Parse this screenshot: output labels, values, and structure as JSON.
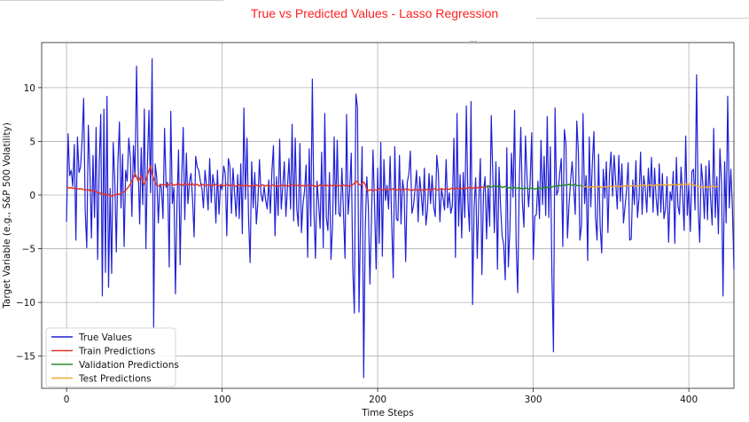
{
  "chart_data": {
    "type": "line",
    "title": "True vs Predicted Values - Lasso Regression",
    "xlabel": "Time Steps",
    "ylabel": "Target Variable (e.g., S&P 500 Volatility)",
    "xlim": [
      -16,
      429
    ],
    "ylim": [
      -18,
      14.2
    ],
    "x_ticks": [
      0,
      100,
      200,
      300,
      400
    ],
    "y_ticks": [
      10,
      5,
      0,
      -5,
      -10,
      -15
    ],
    "grid": true,
    "legend_position": "lower-left",
    "series": [
      {
        "name": "True Values",
        "color": "#1f1fd6",
        "x_start": 0,
        "values": [
          -2.5,
          5.7,
          1.8,
          2.3,
          0.8,
          4.7,
          -4.2,
          5.4,
          2.1,
          2.6,
          5.1,
          9.0,
          -1.5,
          -4.9,
          6.5,
          2.4,
          -4.0,
          3.7,
          -2.1,
          6.3,
          -6.0,
          2.9,
          7.5,
          -9.4,
          8.0,
          -7.2,
          9.2,
          -8.6,
          0.6,
          -7.3,
          4.9,
          1.4,
          -5.3,
          3.0,
          6.8,
          -1.2,
          3.8,
          -4.8,
          2.3,
          1.3,
          5.3,
          3.5,
          -2.0,
          4.6,
          1.7,
          12.0,
          2.9,
          -2.7,
          4.4,
          -0.9,
          8.0,
          -5.0,
          2.9,
          7.9,
          0.2,
          12.7,
          -12.3,
          2.9,
          1.6,
          -2.6,
          1.0,
          0.7,
          -2.2,
          6.2,
          0.7,
          1.2,
          -6.7,
          7.8,
          -0.8,
          0.7,
          -9.2,
          -0.8,
          4.2,
          -6.5,
          1.5,
          6.3,
          -2.3,
          3.9,
          -0.8,
          1.2,
          2.0,
          -0.4,
          -3.9,
          3.6,
          2.6,
          2.3,
          1.3,
          0.6,
          -1.2,
          2.3,
          0.8,
          -1.4,
          3.4,
          -0.7,
          1.9,
          0.9,
          -2.6,
          2.3,
          -1.8,
          1.0,
          0.5,
          2.7,
          2.0,
          -3.8,
          3.4,
          2.7,
          -1.7,
          2.5,
          0.2,
          -2.0,
          1.9,
          -2.2,
          2.9,
          -3.6,
          8.1,
          -0.4,
          5.3,
          -2.2,
          -6.3,
          3.1,
          -1.2,
          2.1,
          -2.7,
          -0.6,
          3.3,
          0.1,
          -0.6,
          0.8,
          -0.5,
          -1.3,
          1.4,
          -1.7,
          2.2,
          4.6,
          -3.8,
          1.7,
          -1.9,
          5.2,
          -1.3,
          0.8,
          3.1,
          -2.0,
          0.7,
          3.4,
          -1.3,
          6.6,
          -2.4,
          5.3,
          -1.3,
          -2.9,
          4.8,
          -3.5,
          -0.8,
          0.4,
          2.8,
          -5.8,
          4.3,
          -2.9,
          10.8,
          -1.3,
          -5.9,
          1.3,
          -0.7,
          -3.1,
          4.0,
          -4.9,
          7.6,
          -2.1,
          -3.3,
          2.1,
          -6.0,
          -2.8,
          5.4,
          -1.8,
          5.1,
          -1.7,
          -2.0,
          2.5,
          -1.6,
          -5.9,
          7.5,
          -1.8,
          0.5,
          3.9,
          -6.9,
          -11.0,
          9.4,
          8.2,
          -10.9,
          -2.0,
          4.5,
          -17.0,
          -3.2,
          1.7,
          -1.1,
          -8.3,
          -2.3,
          4.2,
          -1.0,
          -6.9,
          2.5,
          -4.5,
          4.9,
          -5.7,
          3.3,
          -0.5,
          0.9,
          -1.3,
          3.6,
          -2.5,
          -7.7,
          4.5,
          -2.2,
          -2.4,
          3.7,
          -2.7,
          1.4,
          0.2,
          -6.2,
          1.2,
          1.9,
          4.1,
          -1.7,
          -1.0,
          0.5,
          2.3,
          -2.5,
          1.7,
          0.1,
          -1.9,
          2.5,
          -2.8,
          -1.4,
          2.0,
          -0.8,
          1.8,
          -1.1,
          -2.0,
          3.7,
          2.1,
          -2.5,
          0.6,
          -0.3,
          -1.4,
          3.3,
          -1.2,
          0.2,
          -1.7,
          -1.0,
          5.3,
          -5.8,
          7.6,
          -2.9,
          1.9,
          -4.0,
          2.1,
          -2.1,
          8.3,
          -0.5,
          -3.4,
          8.7,
          -10.2,
          -1.0,
          1.6,
          -5.9,
          -0.5,
          3.4,
          -7.4,
          0.2,
          1.7,
          -4.1,
          0.9,
          -2.9,
          7.4,
          1.9,
          -3.5,
          3.1,
          -6.9,
          2.6,
          -1.0,
          -3.8,
          -4.6,
          -7.9,
          4.4,
          -6.7,
          -3.2,
          3.9,
          -0.2,
          7.9,
          -4.5,
          -9.1,
          1.1,
          6.3,
          -0.6,
          -3.0,
          5.5,
          1.6,
          -1.1,
          1.2,
          5.8,
          -6.0,
          -2.0,
          -1.8,
          1.3,
          -2.2,
          5.1,
          -0.9,
          3.6,
          -1.9,
          7.3,
          -2.1,
          4.5,
          -7.3,
          -14.6,
          8.1,
          0.0,
          0.4,
          2.0,
          3.4,
          -4.8,
          6.1,
          4.8,
          -4.0,
          -0.9,
          1.3,
          3.1,
          0.7,
          -1.8,
          6.9,
          4.0,
          -4.2,
          -2.8,
          7.6,
          -0.8,
          1.8,
          -6.1,
          5.4,
          -1.1,
          3.0,
          5.9,
          -2.0,
          -4.2,
          3.8,
          -2.9,
          -5.4,
          2.4,
          -0.3,
          3.1,
          -3.5,
          2.0,
          4.0,
          -0.1,
          3.7,
          1.2,
          -1.3,
          3.7,
          -0.6,
          2.9,
          -2.6,
          -1.1,
          0.5,
          3.0,
          -4.2,
          -4.1,
          1.4,
          -0.9,
          3.2,
          -2.1,
          -0.3,
          4.0,
          -1.8,
          1.8,
          0.6,
          -1.6,
          2.5,
          -0.2,
          3.5,
          -1.6,
          2.5,
          -0.3,
          -1.9,
          2.9,
          -1.6,
          2.0,
          -2.2,
          -1.3,
          1.7,
          -4.4,
          0.3,
          -0.5,
          2.2,
          -4.5,
          3.5,
          -1.0,
          -1.8,
          2.6,
          0.0,
          -3.3,
          5.5,
          -1.9,
          0.9,
          -3.4,
          2.2,
          2.4,
          -1.4,
          11.2,
          -1.2,
          -4.4,
          2.9,
          1.1,
          -2.2,
          2.7,
          -2.3,
          3.2,
          -0.3,
          -2.8,
          6.2,
          -2.1,
          1.7,
          -3.6,
          4.3,
          1.2,
          -9.4,
          3.1,
          -2.6,
          9.2,
          -1.2,
          2.4,
          -1.1,
          -6.9
        ]
      },
      {
        "name": "Train Predictions",
        "color": "#e0352b",
        "x_start": 0,
        "values": [
          0.7,
          0.7,
          0.65,
          0.7,
          0.6,
          0.65,
          0.6,
          0.6,
          0.55,
          0.6,
          0.55,
          0.5,
          0.5,
          0.45,
          0.5,
          0.4,
          0.45,
          0.35,
          0.4,
          0.3,
          0.2,
          0.25,
          0.1,
          0.15,
          0.05,
          0.1,
          0.0,
          0.05,
          -0.05,
          -0.1,
          -0.05,
          0.0,
          0.05,
          0.1,
          0.05,
          0.2,
          0.25,
          0.3,
          0.45,
          0.6,
          0.8,
          1.0,
          1.3,
          1.6,
          2.0,
          1.7,
          1.3,
          1.5,
          1.8,
          1.2,
          1.0,
          1.4,
          1.9,
          2.3,
          2.7,
          2.0,
          1.5,
          1.2,
          0.9,
          0.85,
          0.9,
          1.0,
          0.9,
          0.95,
          1.0,
          0.9,
          0.95,
          1.1,
          1.0,
          0.9,
          0.95,
          1.0,
          1.05,
          0.95,
          1.0,
          0.9,
          1.1,
          0.95,
          1.0,
          0.9,
          1.0,
          1.05,
          0.9,
          0.95,
          1.0,
          0.85,
          0.9,
          1.0,
          0.95,
          0.85,
          0.9,
          0.95,
          0.9,
          0.85,
          0.9,
          0.95,
          1.0,
          0.9,
          0.85,
          0.9,
          0.95,
          0.85,
          0.9,
          1.0,
          0.95,
          0.85,
          0.9,
          0.95,
          0.85,
          0.8,
          0.9,
          0.95,
          0.85,
          0.9,
          0.85,
          0.95,
          0.9,
          0.85,
          0.8,
          0.9,
          0.85,
          0.9,
          0.95,
          0.85,
          0.8,
          0.9,
          0.95,
          0.9,
          0.85,
          0.9,
          0.8,
          0.85,
          0.9,
          0.95,
          0.85,
          0.9,
          0.8,
          0.85,
          0.9,
          0.95,
          0.85,
          0.9,
          0.8,
          0.85,
          0.9,
          0.95,
          1.0,
          0.9,
          0.85,
          0.9,
          0.95,
          0.85,
          0.9,
          0.8,
          0.85,
          0.9,
          0.95,
          0.85,
          0.9,
          0.85,
          0.8,
          0.9,
          0.85,
          0.95,
          0.9,
          0.85,
          0.9,
          0.95,
          0.85,
          0.8,
          0.9,
          0.85,
          0.9,
          0.95,
          0.85,
          0.9,
          0.85,
          0.9,
          0.95,
          0.85,
          0.9,
          0.8,
          0.85,
          0.9,
          0.95,
          1.1,
          1.3,
          1.2,
          1.0,
          0.9,
          1.1,
          1.2,
          1.0,
          0.5,
          0.4,
          0.5,
          0.45,
          0.4,
          0.5,
          0.45,
          0.5,
          0.6,
          0.5,
          0.45,
          0.5,
          0.55,
          0.5,
          0.45,
          0.55,
          0.5,
          0.6,
          0.55,
          0.5,
          0.45,
          0.55,
          0.5,
          0.45,
          0.5,
          0.55,
          0.6,
          0.5,
          0.45,
          0.4,
          0.5,
          0.55,
          0.5,
          0.45,
          0.55,
          0.5,
          0.45,
          0.4,
          0.5,
          0.55,
          0.5,
          0.45,
          0.5,
          0.55,
          0.6,
          0.5,
          0.45,
          0.55,
          0.6,
          0.55,
          0.5,
          0.6,
          0.55,
          0.5,
          0.6,
          0.65,
          0.55,
          0.6,
          0.65,
          0.6,
          0.55,
          0.6,
          0.65,
          0.7,
          0.6,
          0.65,
          0.7,
          0.65,
          0.6,
          0.7,
          0.75,
          0.7,
          0.65,
          0.7,
          0.75,
          0.7,
          0.75,
          0.8,
          0.7
        ]
      },
      {
        "name": "Validation Predictions",
        "color": "#2a8a2a",
        "x_start": 269,
        "values": [
          0.75,
          0.8,
          0.85,
          0.8,
          0.75,
          0.8,
          0.85,
          0.9,
          0.8,
          0.75,
          0.8,
          0.7,
          0.75,
          0.8,
          0.7,
          0.65,
          0.7,
          0.6,
          0.65,
          0.7,
          0.6,
          0.65,
          0.7,
          0.6,
          0.55,
          0.6,
          0.65,
          0.6,
          0.55,
          0.6,
          0.65,
          0.6,
          0.55,
          0.6,
          0.65,
          0.7,
          0.6,
          0.65,
          0.7,
          0.65,
          0.7,
          0.75,
          0.7,
          0.75,
          0.8,
          0.85,
          0.8,
          0.85,
          0.9,
          0.85,
          0.9,
          0.95,
          0.9,
          0.95,
          1.0,
          0.95,
          0.9,
          0.95,
          1.0,
          0.9,
          0.85,
          0.9,
          0.85,
          0.8
        ]
      },
      {
        "name": "Test Predictions",
        "color": "#f0a830",
        "x_start": 332,
        "values": [
          0.8,
          0.75,
          0.8,
          0.75,
          0.7,
          0.75,
          0.8,
          0.75,
          0.7,
          0.75,
          0.8,
          0.75,
          0.7,
          0.75,
          0.8,
          0.75,
          0.8,
          0.85,
          0.8,
          0.75,
          0.8,
          0.85,
          0.8,
          0.75,
          0.8,
          0.85,
          0.8,
          0.85,
          0.9,
          0.85,
          0.8,
          0.85,
          0.9,
          0.85,
          0.8,
          0.85,
          0.9,
          0.85,
          0.9,
          0.95,
          0.9,
          0.85,
          0.9,
          0.95,
          0.9,
          0.85,
          0.9,
          0.95,
          0.9,
          0.95,
          1.0,
          0.95,
          0.9,
          0.95,
          1.0,
          0.95,
          0.9,
          0.95,
          1.0,
          0.95,
          0.9,
          0.95,
          1.0,
          0.95,
          1.0,
          1.05,
          1.0,
          0.95,
          1.0,
          1.05,
          1.0,
          0.95,
          0.9,
          0.85,
          0.8,
          0.75,
          0.7,
          0.75,
          0.8,
          0.75,
          0.7,
          0.75,
          0.8,
          0.85,
          0.8,
          0.75,
          0.8,
          0.85
        ]
      }
    ]
  }
}
